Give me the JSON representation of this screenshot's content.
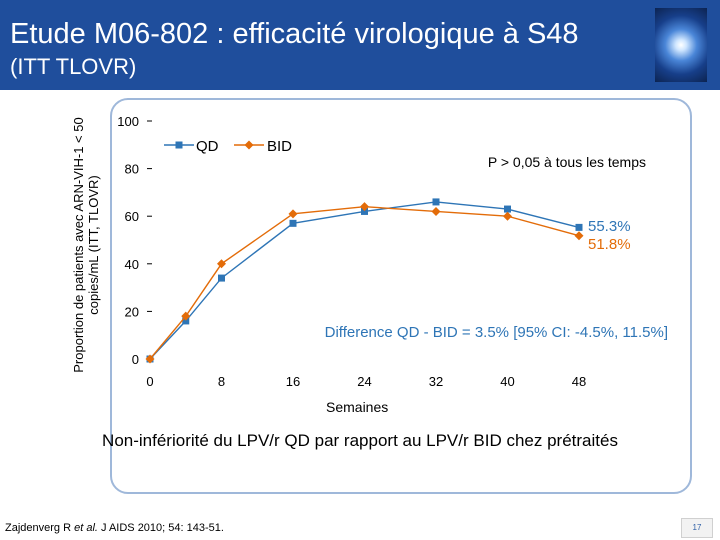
{
  "header": {
    "title": "Etude M06-802 : efficacité virologique à S48",
    "subtitle": "(ITT TLOVR)"
  },
  "chart_data": {
    "type": "line",
    "ylabel": "Proportion de patients avec ARN-VIH-1 < 50 copies/mL (ITT, TLOVR)",
    "xlabel": "Semaines",
    "ylim": [
      0,
      100
    ],
    "xlim": [
      0,
      48
    ],
    "yticks": [
      0,
      20,
      40,
      60,
      80,
      100
    ],
    "xticks": [
      0,
      8,
      16,
      24,
      32,
      40,
      48
    ],
    "ytick_labels": [
      "0",
      "20",
      "40",
      "60",
      "80",
      "100"
    ],
    "xtick_labels": [
      "0",
      "8",
      "16",
      "24",
      "32",
      "40",
      "48"
    ],
    "legend": [
      "QD",
      "BID"
    ],
    "series": [
      {
        "name": "QD",
        "color": "#2e75b6",
        "marker": "square",
        "x": [
          0,
          4,
          8,
          16,
          24,
          32,
          40,
          48
        ],
        "y": [
          0,
          16,
          34,
          57,
          62,
          66,
          63,
          55.3
        ]
      },
      {
        "name": "BID",
        "color": "#e36c09",
        "marker": "diamond",
        "x": [
          0,
          4,
          8,
          16,
          24,
          32,
          40,
          48
        ],
        "y": [
          0,
          18,
          40,
          61,
          64,
          62,
          60,
          51.8
        ]
      }
    ],
    "annotations": {
      "pvalue": "P > 0,05 à tous les temps",
      "qd_final": "55.3%",
      "bid_final": "51.8%",
      "difference": "Difference QD - BID = 3.5% [95% CI: -4.5%, 11.5%]"
    }
  },
  "conclusion": "Non-infériorité du LPV/r QD par rapport au LPV/r BID chez prétraités",
  "citation": {
    "authors": "Zajdenverg R ",
    "etal": "et al.",
    "journal": " J AIDS 2010; 54: 143-51."
  },
  "page_number": "17"
}
